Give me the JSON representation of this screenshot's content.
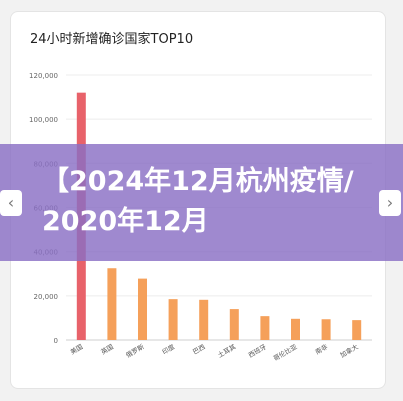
{
  "chart_data": {
    "type": "bar",
    "title": "24小时新增确诊国家TOP10",
    "categories": [
      "美国",
      "英国",
      "俄罗斯",
      "印度",
      "巴西",
      "土耳其",
      "西班牙",
      "哥伦比亚",
      "南非",
      "加拿大"
    ],
    "values": [
      112000,
      32500,
      27800,
      18500,
      18200,
      14000,
      10800,
      9600,
      9400,
      9000
    ],
    "yticks": [
      "0",
      "20,000",
      "40,000",
      "60,000",
      "80,000",
      "100,000",
      "120,000"
    ],
    "ylim": [
      0,
      120000
    ],
    "grid": true,
    "colors": {
      "first": "#e8626a",
      "rest": "#f5a05a"
    }
  },
  "overlay": {
    "headline": "【2024年12月杭州疫情/2020年12月"
  },
  "nav": {
    "prev_glyph": "‹",
    "next_glyph": "›"
  }
}
